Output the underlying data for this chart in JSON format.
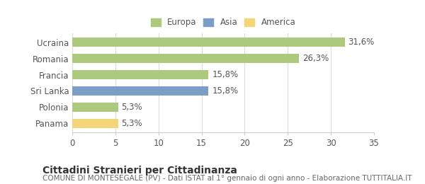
{
  "categories": [
    "Ucraina",
    "Romania",
    "Francia",
    "Sri Lanka",
    "Polonia",
    "Panama"
  ],
  "values": [
    31.6,
    26.3,
    15.8,
    15.8,
    5.3,
    5.3
  ],
  "labels": [
    "31,6%",
    "26,3%",
    "15,8%",
    "15,8%",
    "5,3%",
    "5,3%"
  ],
  "colors": [
    "#adc97e",
    "#adc97e",
    "#adc97e",
    "#7b9ec7",
    "#adc97e",
    "#f5d57a"
  ],
  "legend": [
    {
      "label": "Europa",
      "color": "#adc97e"
    },
    {
      "label": "Asia",
      "color": "#7b9ec7"
    },
    {
      "label": "America",
      "color": "#f5d57a"
    }
  ],
  "xlim": [
    0,
    35
  ],
  "xticks": [
    0,
    5,
    10,
    15,
    20,
    25,
    30,
    35
  ],
  "title": "Cittadini Stranieri per Cittadinanza",
  "subtitle": "COMUNE DI MONTESEGALE (PV) - Dati ISTAT al 1° gennaio di ogni anno - Elaborazione TUTTITALIA.IT",
  "background_color": "#ffffff",
  "bar_height": 0.55,
  "label_fontsize": 8.5,
  "tick_fontsize": 8.5,
  "title_fontsize": 10,
  "subtitle_fontsize": 7.5
}
